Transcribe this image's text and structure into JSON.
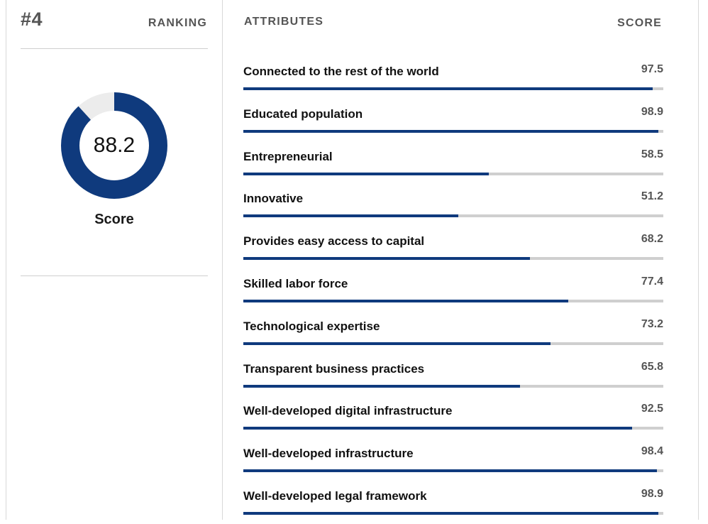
{
  "ranking": {
    "number": "#4",
    "label": "RANKING"
  },
  "overall": {
    "score": 88.2,
    "score_text": "88.2",
    "caption": "Score"
  },
  "headers": {
    "attributes": "ATTRIBUTES",
    "score": "SCORE"
  },
  "colors": {
    "accent": "#0f3a7d",
    "track": "#cfcfcf",
    "donut_remainder": "#ececec",
    "muted_text": "#555555"
  },
  "attributes": [
    {
      "name": "Connected to the rest of the world",
      "score": 97.5,
      "score_text": "97.5"
    },
    {
      "name": "Educated population",
      "score": 98.9,
      "score_text": "98.9"
    },
    {
      "name": "Entrepreneurial",
      "score": 58.5,
      "score_text": "58.5"
    },
    {
      "name": "Innovative",
      "score": 51.2,
      "score_text": "51.2"
    },
    {
      "name": "Provides easy access to capital",
      "score": 68.2,
      "score_text": "68.2"
    },
    {
      "name": "Skilled labor force",
      "score": 77.4,
      "score_text": "77.4"
    },
    {
      "name": "Technological expertise",
      "score": 73.2,
      "score_text": "73.2"
    },
    {
      "name": "Transparent business practices",
      "score": 65.8,
      "score_text": "65.8"
    },
    {
      "name": "Well-developed digital infrastructure",
      "score": 92.5,
      "score_text": "92.5"
    },
    {
      "name": "Well-developed infrastructure",
      "score": 98.4,
      "score_text": "98.4"
    },
    {
      "name": "Well-developed legal framework",
      "score": 98.9,
      "score_text": "98.9"
    }
  ]
}
